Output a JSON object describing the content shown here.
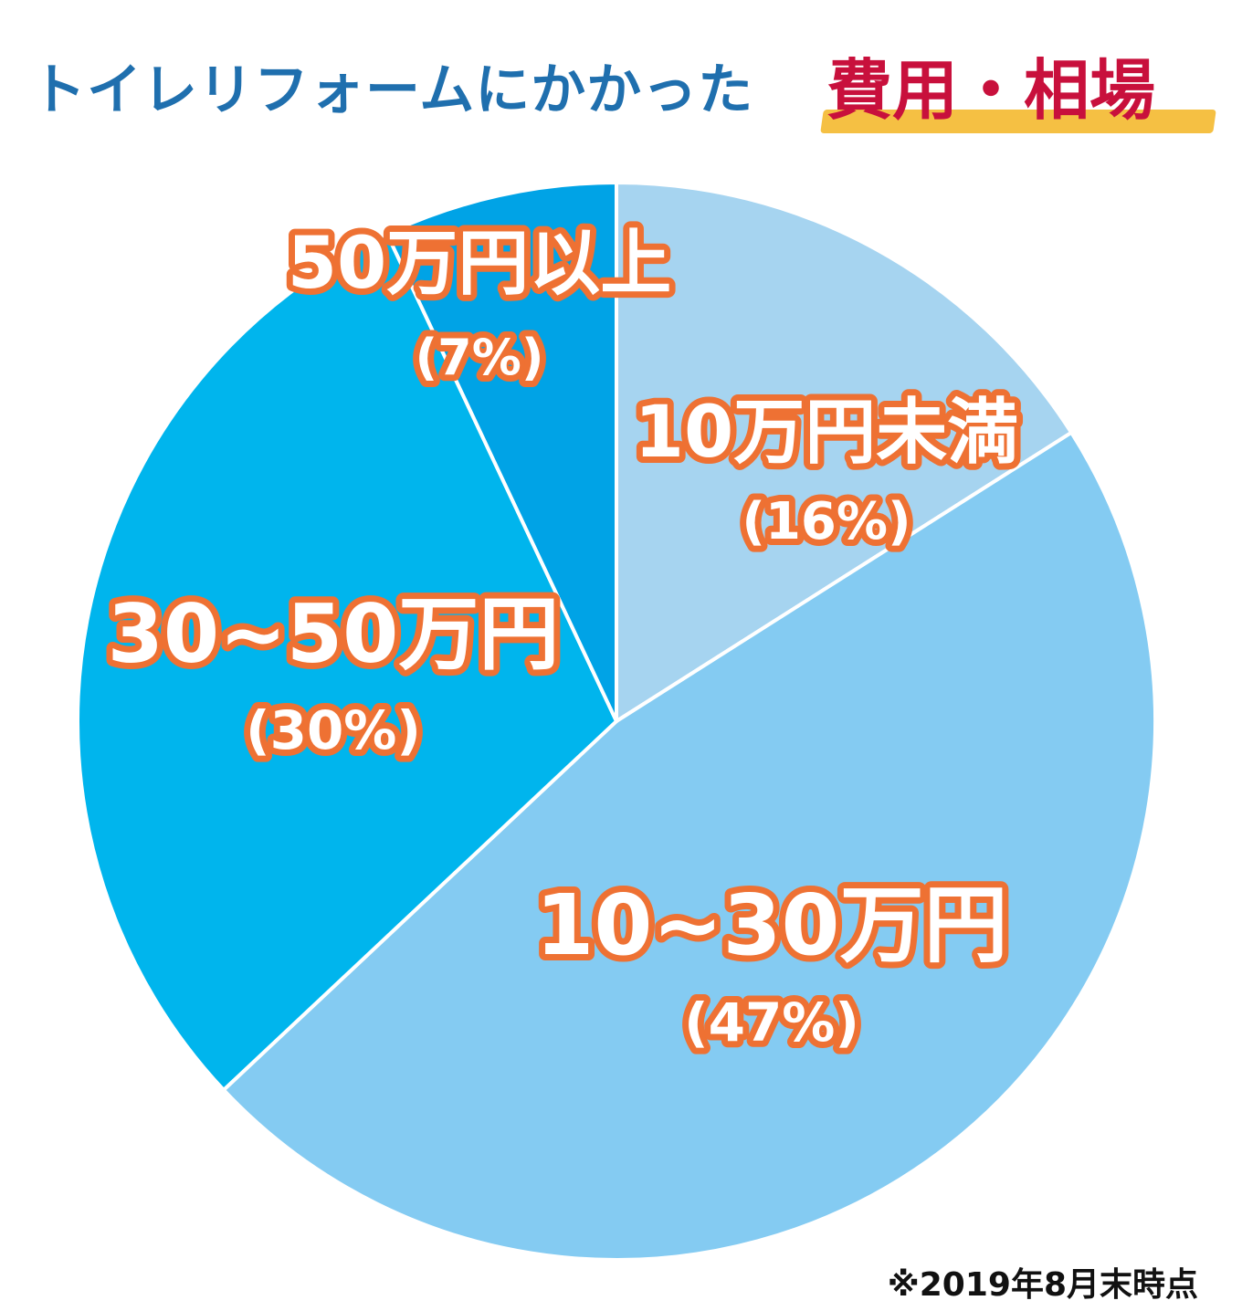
{
  "title": {
    "main": "トイレリフォームにかかった",
    "accent": "費用・相場"
  },
  "chart_data": {
    "type": "pie",
    "categories": [
      "10万円未満",
      "10~30万円",
      "30~50万円",
      "50万円以上"
    ],
    "values": [
      16,
      47,
      30,
      7
    ],
    "percent_labels": [
      "(16%)",
      "(47%)",
      "(30%)",
      "(7%)"
    ],
    "colors": [
      "#a6d4f0",
      "#84cbf2",
      "#00b5ed",
      "#00a3e6"
    ],
    "label_color": "#ffffff",
    "label_outline_color": "#ee7133"
  },
  "footnote": "※2019年8月末時点"
}
